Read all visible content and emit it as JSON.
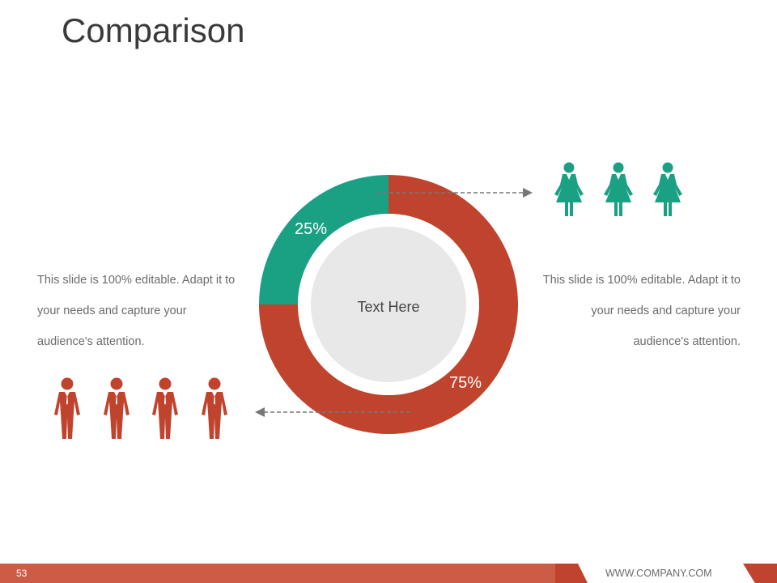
{
  "slide": {
    "title": "Comparison",
    "page_number": "53",
    "website": "WWW.COMPANY.COM"
  },
  "text_left": "This slide is 100% editable. Adapt it to your needs and capture your audience's attention.",
  "text_right": "This slide is 100% editable. Adapt it to your needs and capture your audience's attention.",
  "chart_data": {
    "type": "pie",
    "variant": "donut",
    "center_label": "Text Here",
    "slices": [
      {
        "label": "25%",
        "value": 25,
        "color": "#1aa083"
      },
      {
        "label": "75%",
        "value": 75,
        "color": "#c0432e"
      }
    ]
  },
  "icons": {
    "female_color": "#1aa083",
    "male_color": "#c0432e",
    "female_count": 3,
    "male_count": 4,
    "female_icon": "woman-icon",
    "male_icon": "man-icon"
  },
  "colors": {
    "center_disc": "#e8e8e8",
    "arrow": "#777777",
    "footer": "#cd5c47"
  }
}
